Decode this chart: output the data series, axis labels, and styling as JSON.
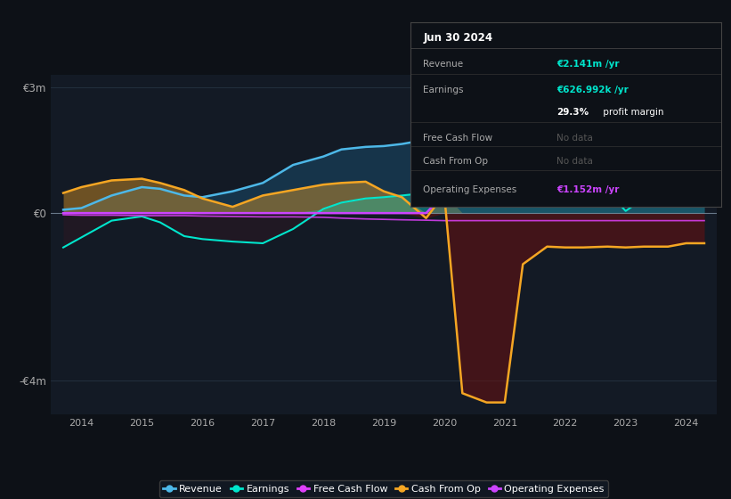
{
  "bg_color": "#0d1117",
  "chart_bg": "#131a25",
  "years": [
    2013.7,
    2014.0,
    2014.5,
    2015.0,
    2015.3,
    2015.7,
    2016.0,
    2016.5,
    2017.0,
    2017.5,
    2018.0,
    2018.3,
    2018.7,
    2019.0,
    2019.3,
    2019.7,
    2020.0,
    2020.3,
    2020.7,
    2021.0,
    2021.3,
    2021.7,
    2022.0,
    2022.3,
    2022.7,
    2023.0,
    2023.3,
    2023.7,
    2024.0,
    2024.3
  ],
  "revenue": [
    0.08,
    0.12,
    0.42,
    0.62,
    0.58,
    0.42,
    0.38,
    0.52,
    0.72,
    1.15,
    1.35,
    1.52,
    1.58,
    1.6,
    1.65,
    1.75,
    1.82,
    1.85,
    1.85,
    1.88,
    1.92,
    1.98,
    2.05,
    2.08,
    1.95,
    1.98,
    2.05,
    2.08,
    2.14,
    2.14
  ],
  "earnings": [
    -0.82,
    -0.58,
    -0.18,
    -0.08,
    -0.22,
    -0.55,
    -0.62,
    -0.68,
    -0.72,
    -0.38,
    0.1,
    0.25,
    0.35,
    0.38,
    0.42,
    0.48,
    0.52,
    0.5,
    0.48,
    0.42,
    0.52,
    0.58,
    0.62,
    0.6,
    0.52,
    0.05,
    0.35,
    0.58,
    0.63,
    0.63
  ],
  "free_cash_flow": [
    -0.04,
    -0.05,
    -0.05,
    -0.06,
    -0.06,
    -0.06,
    -0.07,
    -0.08,
    -0.09,
    -0.09,
    -0.1,
    -0.12,
    -0.14,
    -0.15,
    -0.16,
    -0.17,
    -0.18,
    -0.18,
    -0.18,
    -0.18,
    -0.18,
    -0.18,
    -0.18,
    -0.18,
    -0.18,
    -0.18,
    -0.18,
    -0.18,
    -0.18,
    -0.18
  ],
  "cash_from_op": [
    0.48,
    0.62,
    0.78,
    0.82,
    0.72,
    0.55,
    0.35,
    0.15,
    0.42,
    0.55,
    0.68,
    0.72,
    0.75,
    0.52,
    0.38,
    -0.12,
    0.45,
    -4.3,
    -4.52,
    -4.52,
    -1.22,
    -0.8,
    -0.82,
    -0.82,
    -0.8,
    -0.82,
    -0.8,
    -0.8,
    -0.72,
    -0.72
  ],
  "operating_expenses": [
    0.0,
    0.0,
    0.0,
    0.0,
    0.0,
    0.0,
    0.0,
    0.0,
    0.0,
    0.0,
    0.0,
    0.0,
    0.0,
    0.0,
    0.0,
    0.0,
    0.45,
    0.62,
    0.72,
    0.78,
    0.85,
    0.9,
    0.95,
    0.98,
    0.98,
    1.0,
    1.02,
    1.05,
    1.1,
    1.15
  ],
  "colors": {
    "revenue": "#4db8e8",
    "revenue_fill": "#1a4a6a",
    "earnings": "#00e5cc",
    "earnings_neg_fill": "#3a1520",
    "free_cash_flow": "#e040fb",
    "cash_from_op": "#f5a623",
    "cash_neg_fill": "#6a1010",
    "operating_expenses": "#cc44ff",
    "op_exp_fill": "#3a1a4a"
  },
  "ylim": [
    -4.8,
    3.3
  ],
  "ytick_vals": [
    -4,
    0,
    3
  ],
  "ytick_labels": [
    "-€4m",
    "€0",
    "€3m"
  ],
  "xlim": [
    2013.5,
    2024.5
  ],
  "xticks": [
    2014,
    2015,
    2016,
    2017,
    2018,
    2019,
    2020,
    2021,
    2022,
    2023,
    2024
  ],
  "legend_items": [
    {
      "label": "Revenue",
      "color": "#4db8e8"
    },
    {
      "label": "Earnings",
      "color": "#00e5cc"
    },
    {
      "label": "Free Cash Flow",
      "color": "#e040fb"
    },
    {
      "label": "Cash From Op",
      "color": "#f5a623"
    },
    {
      "label": "Operating Expenses",
      "color": "#cc44ff"
    }
  ],
  "info_box": {
    "date": "Jun 30 2024",
    "rows": [
      {
        "label": "Revenue",
        "value": "€2.141m /yr",
        "value_color": "#00e5cc"
      },
      {
        "label": "Earnings",
        "value": "€626.992k /yr",
        "value_color": "#00e5cc"
      },
      {
        "label": "",
        "value_bold": "29.3%",
        "value_rest": " profit margin",
        "value_color": "#ffffff"
      },
      {
        "label": "Free Cash Flow",
        "value": "No data",
        "value_color": "#555555"
      },
      {
        "label": "Cash From Op",
        "value": "No data",
        "value_color": "#555555"
      },
      {
        "label": "Operating Expenses",
        "value": "€1.152m /yr",
        "value_color": "#cc44ff"
      }
    ]
  }
}
